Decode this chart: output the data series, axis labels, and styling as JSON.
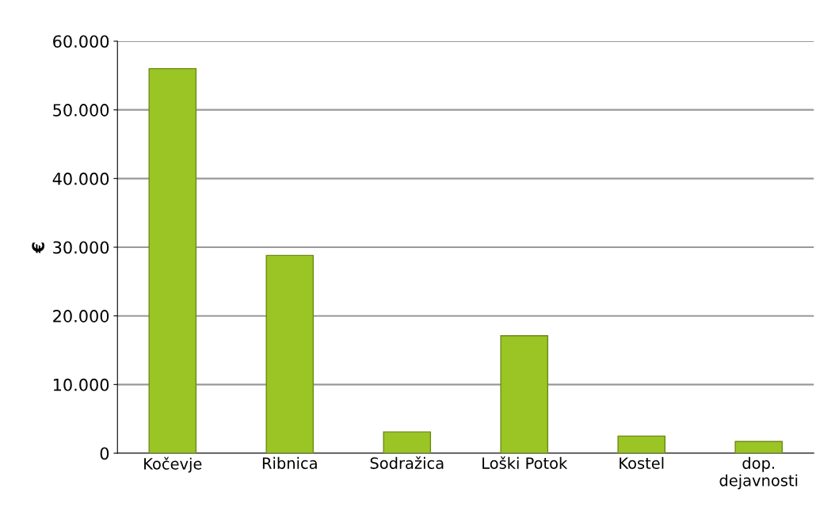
{
  "chart_data": {
    "type": "bar",
    "ylabel": "€",
    "categories": [
      "Kočevje",
      "Ribnica",
      "Sodražica",
      "Loški Potok",
      "Kostel",
      "dop.\ndejavnosti"
    ],
    "values": [
      56000,
      28800,
      3100,
      17100,
      2500,
      1700
    ],
    "color": "#9ac524",
    "ylim": [
      0,
      60000
    ],
    "yticks": [
      {
        "value": 0,
        "label": "0"
      },
      {
        "value": 10000,
        "label": "10.000"
      },
      {
        "value": 20000,
        "label": "20.000"
      },
      {
        "value": 30000,
        "label": "30.000"
      },
      {
        "value": 40000,
        "label": "40.000"
      },
      {
        "value": 50000,
        "label": "50.000"
      },
      {
        "value": 60000,
        "label": "60.000"
      }
    ],
    "grid": "y"
  }
}
